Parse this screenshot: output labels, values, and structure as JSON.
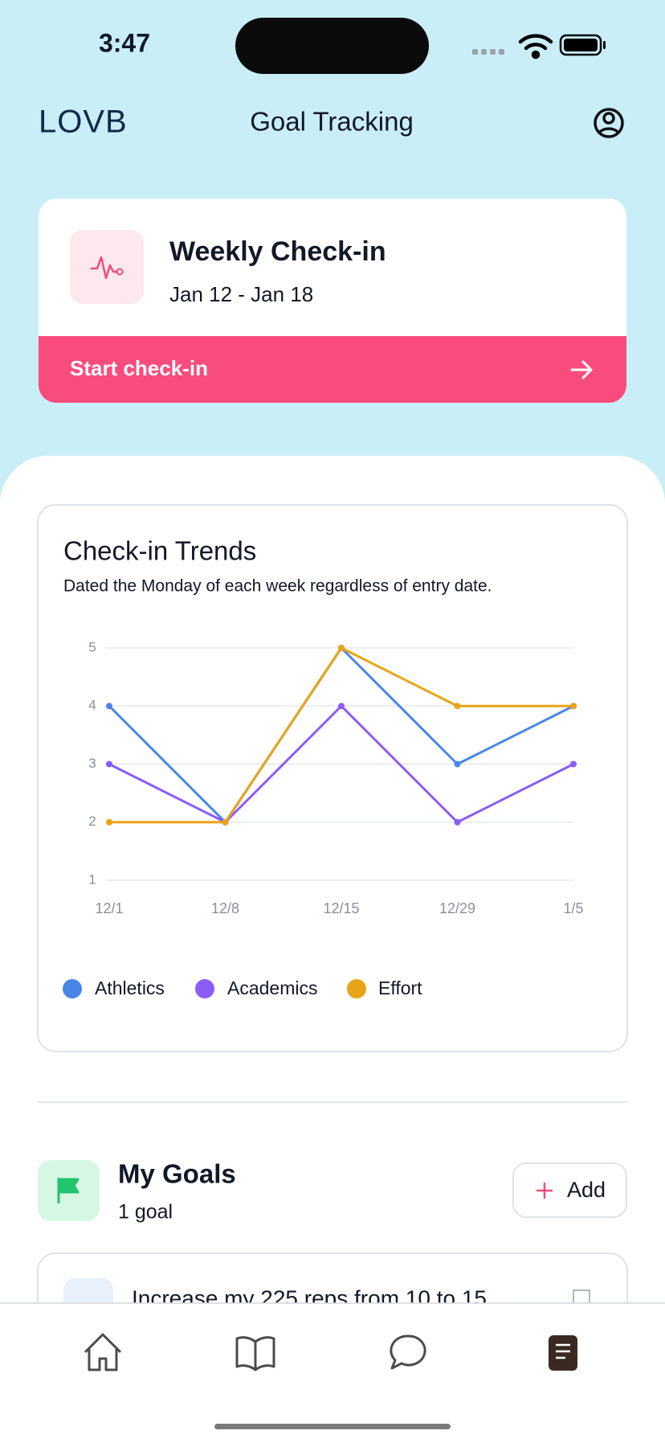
{
  "status_bar": {
    "time": "3:47"
  },
  "header": {
    "logo": "LOVB",
    "title": "Goal Tracking"
  },
  "checkin_card": {
    "title": "Weekly Check-in",
    "dates": "Jan 12 - Jan 18",
    "button": "Start check-in"
  },
  "chart_data": {
    "type": "line",
    "title": "Check-in Trends",
    "subtitle": "Dated the Monday of each week regardless of entry date.",
    "categories": [
      "12/1",
      "12/8",
      "12/15",
      "12/29",
      "1/5"
    ],
    "series": [
      {
        "name": "Athletics",
        "color": "#4a86e8",
        "values": [
          4,
          2,
          5,
          3,
          4
        ]
      },
      {
        "name": "Academics",
        "color": "#8b5cf6",
        "values": [
          3,
          2,
          4,
          2,
          3
        ]
      },
      {
        "name": "Effort",
        "color": "#e8a317",
        "values": [
          2,
          2,
          5,
          4,
          4
        ]
      }
    ],
    "ylim": [
      1,
      5
    ],
    "yticks": [
      1,
      2,
      3,
      4,
      5
    ],
    "grid": true
  },
  "goals": {
    "title": "My Goals",
    "count": "1 goal",
    "add_button": "Add",
    "items": [
      "Increase my 225 reps from 10 to 15"
    ]
  }
}
